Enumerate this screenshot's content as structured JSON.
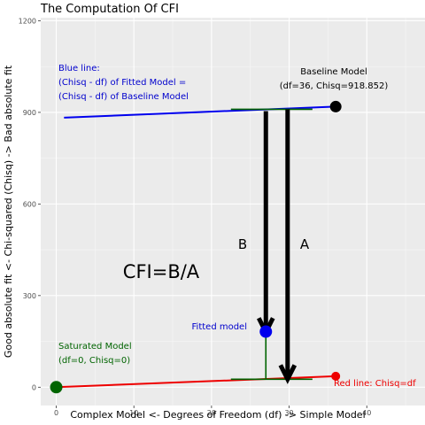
{
  "chart_data": {
    "type": "line",
    "title": "The Computation Of CFI",
    "xlabel": "Complex Model <- Degrees of Freedom (df) -> Simple Model",
    "ylabel": "Good absolute fit <- Chi-squared (Chisq) -> Bad absolute fit",
    "xlim": [
      -2,
      47.5
    ],
    "ylim": [
      -60,
      1210
    ],
    "x_ticks": [
      0,
      10,
      20,
      30,
      40
    ],
    "y_ticks": [
      0,
      300,
      600,
      900,
      1200
    ],
    "x_tick_labels": [
      "0",
      "10",
      "20",
      "30",
      "40"
    ],
    "y_tick_labels": [
      "0",
      "300",
      "600",
      "900",
      "1200"
    ],
    "grid": true,
    "series": [
      {
        "name": "Blue line",
        "color": "#0000ee",
        "points": [
          [
            1,
            882.852
          ],
          [
            36,
            918.852
          ]
        ]
      },
      {
        "name": "Red line",
        "color": "#ee0000",
        "points": [
          [
            0,
            0
          ],
          [
            36,
            36
          ]
        ]
      }
    ],
    "points": [
      {
        "label": "Baseline Model",
        "x": 36,
        "y": 918.852,
        "color": "#000000"
      },
      {
        "label": "Fitted model",
        "x": 27,
        "y": 182,
        "color": "#0000ee"
      },
      {
        "label": "Saturated Model",
        "x": 0,
        "y": 0,
        "color": "#006400"
      },
      {
        "label": "Red line endpoint",
        "x": 36,
        "y": 36,
        "color": "#ee0000"
      }
    ],
    "segments": [
      {
        "from": [
          22.5,
          910
        ],
        "to": [
          33,
          910
        ],
        "color": "#006400"
      },
      {
        "from": [
          22.5,
          26
        ],
        "to": [
          33,
          26
        ],
        "color": "#006400"
      },
      {
        "from": [
          27,
          904
        ],
        "to": [
          27,
          26
        ],
        "color": "#006400"
      }
    ],
    "arrows": [
      {
        "label": "B",
        "from": [
          27,
          904
        ],
        "to": [
          27,
          180
        ]
      },
      {
        "label": "A",
        "from": [
          29.8,
          910
        ],
        "to": [
          29.8,
          26
        ]
      }
    ],
    "annotations": {
      "blue_line_1": "Blue line:",
      "blue_line_2": "(Chisq - df) of Fitted Model =",
      "blue_line_3": "(Chisq - df) of Baseline Model",
      "baseline_1": "Baseline Model",
      "baseline_2": "(df=36, Chisq=918.852)",
      "label_B": "B",
      "label_A": "A",
      "cfi": "CFI=B/A",
      "fitted": "Fitted model",
      "saturated_1": "Saturated Model",
      "saturated_2": "(df=0, Chisq=0)",
      "red_line": "Red line: Chisq=df"
    }
  }
}
